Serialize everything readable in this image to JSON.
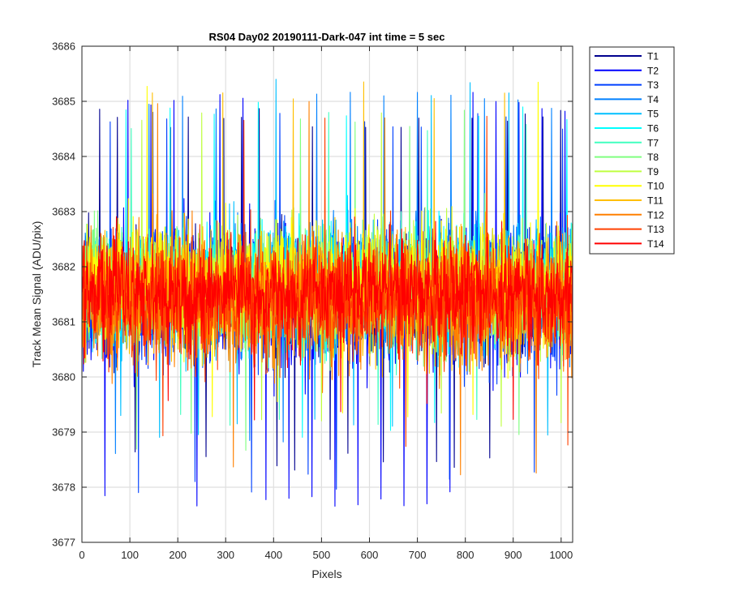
{
  "chart_data": {
    "type": "line",
    "title": "RS04 Day02 20190111-Dark-047 int time = 5 sec",
    "xlabel": "Pixels",
    "ylabel": "Track Mean Signal (ADU/pix)",
    "xlim": [
      0,
      1024
    ],
    "ylim": [
      3677,
      3686
    ],
    "xticks": [
      0,
      100,
      200,
      300,
      400,
      500,
      600,
      700,
      800,
      900,
      1000
    ],
    "yticks": [
      3677,
      3678,
      3679,
      3680,
      3681,
      3682,
      3683,
      3684,
      3685,
      3686
    ],
    "grid": true,
    "legend_position": "outside-top-right",
    "series_sampling": "dense noise around a mean of about 3681.5 ADU/pix, one sample per pixel from 1 to 1024",
    "series": [
      {
        "name": "T1",
        "color": "#00008f",
        "mean": 3681.5,
        "low": 3678.3,
        "high": 3684.9
      },
      {
        "name": "T2",
        "color": "#0000ff",
        "mean": 3681.4,
        "low": 3677.6,
        "high": 3685.2
      },
      {
        "name": "T3",
        "color": "#0040ff",
        "mean": 3681.5,
        "low": 3677.9,
        "high": 3684.8
      },
      {
        "name": "T4",
        "color": "#0080ff",
        "mean": 3681.6,
        "low": 3678.6,
        "high": 3685.2
      },
      {
        "name": "T5",
        "color": "#00bfff",
        "mean": 3681.6,
        "low": 3678.9,
        "high": 3685.4
      },
      {
        "name": "T6",
        "color": "#00ffff",
        "mean": 3681.6,
        "low": 3678.8,
        "high": 3685.0
      },
      {
        "name": "T7",
        "color": "#40ffbf",
        "mean": 3681.6,
        "low": 3679.0,
        "high": 3684.8
      },
      {
        "name": "T8",
        "color": "#80ff80",
        "mean": 3681.6,
        "low": 3678.6,
        "high": 3684.9
      },
      {
        "name": "T9",
        "color": "#bfff40",
        "mean": 3681.6,
        "low": 3679.0,
        "high": 3685.0
      },
      {
        "name": "T10",
        "color": "#ffff00",
        "mean": 3681.7,
        "low": 3679.2,
        "high": 3685.5
      },
      {
        "name": "T11",
        "color": "#ffbf00",
        "mean": 3681.5,
        "low": 3678.9,
        "high": 3685.4
      },
      {
        "name": "T12",
        "color": "#ff8000",
        "mean": 3681.4,
        "low": 3678.0,
        "high": 3685.1
      },
      {
        "name": "T13",
        "color": "#ff4000",
        "mean": 3681.4,
        "low": 3678.7,
        "high": 3684.8
      },
      {
        "name": "T14",
        "color": "#ff0000",
        "mean": 3681.5,
        "low": 3679.2,
        "high": 3685.1
      }
    ]
  }
}
